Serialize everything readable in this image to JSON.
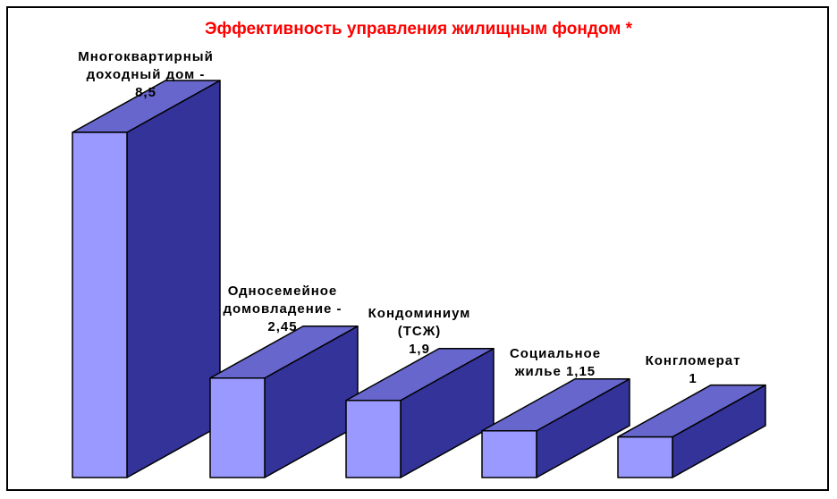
{
  "chart_data": {
    "type": "bar",
    "title": "Эффективность управления жилищным фондом *",
    "categories": [
      "Многоквартирный доходный дом",
      "Односемейное домовладение",
      "Кондоминиум (ТСЖ)",
      "Социальное жилье",
      "Конгломерат"
    ],
    "values": [
      8.5,
      2.45,
      1.9,
      1.15,
      1
    ],
    "labels": [
      [
        "Многоквартирный",
        "доходный дом -",
        "8,5"
      ],
      [
        "Односемейное",
        "домовладение -",
        "2,45"
      ],
      [
        "Кондоминиум",
        "(ТСЖ)",
        "1,9"
      ],
      [
        "Социальное",
        "жилье 1,15"
      ],
      [
        "Конгломерат",
        "1"
      ]
    ],
    "grid": false,
    "legend": "none",
    "colors": {
      "front": "#9999ff",
      "side": "#333399",
      "top": "#6666cc",
      "title": "#ff0000"
    }
  }
}
